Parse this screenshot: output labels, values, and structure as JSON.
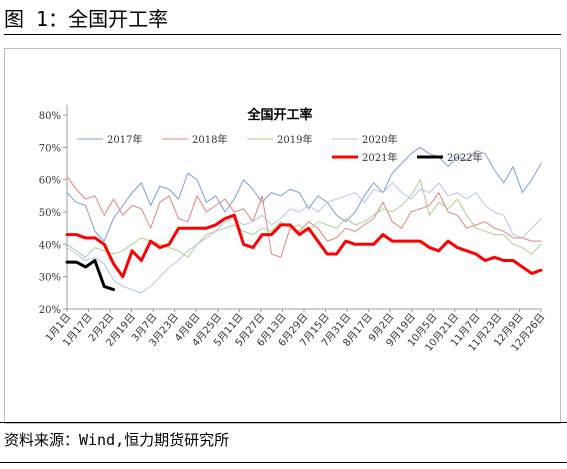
{
  "figure": {
    "title": "图 1：全国开工率"
  },
  "source": "资料来源：Wind,恒力期货研究所",
  "colors": {
    "2017年": "#7b9fd4",
    "2018年": "#e3847e",
    "2019年": "#a9d18e",
    "2020年": "#b4c6e7",
    "2021年": "#ff0000",
    "2022年": "#000000"
  },
  "chart_data": {
    "type": "line",
    "title": "全国开工率",
    "xlabel": "",
    "ylabel": "",
    "ylim": [
      20,
      80
    ],
    "yticks": [
      "20%",
      "30%",
      "40%",
      "50%",
      "60%",
      "70%",
      "80%"
    ],
    "grid": false,
    "legend_position": "top",
    "x_count": 52,
    "x_labels": [
      "1月1日",
      "1月17日",
      "2月2日",
      "2月19日",
      "3月7日",
      "3月23日",
      "4月8日",
      "4月25日",
      "5月11日",
      "5月27日",
      "6月13日",
      "6月29日",
      "7月15日",
      "7月31日",
      "8月17日",
      "9月2日",
      "9月19日",
      "10月5日",
      "10月21日",
      "11月7日",
      "11月23日",
      "12月9日",
      "12月26日"
    ],
    "series": [
      {
        "name": "2017年",
        "values": [
          56,
          53,
          52,
          44,
          41,
          48,
          52,
          56,
          59,
          52,
          58,
          57,
          54,
          62,
          60,
          53,
          55,
          50,
          54,
          60,
          57,
          53,
          56,
          55,
          57,
          56,
          51,
          55,
          53,
          49,
          47,
          50,
          55,
          59,
          56,
          62,
          65,
          68,
          70,
          68,
          67,
          64,
          67,
          66,
          69,
          68,
          63,
          59,
          64,
          56,
          60,
          65
        ]
      },
      {
        "name": "2018年",
        "values": [
          61,
          57,
          54,
          55,
          49,
          54,
          49,
          52,
          51,
          45,
          53,
          55,
          48,
          47,
          55,
          50,
          52,
          54,
          50,
          51,
          47,
          55,
          37,
          36,
          45,
          44,
          47,
          45,
          41,
          42,
          45,
          44,
          46,
          48,
          53,
          47,
          45,
          50,
          51,
          52,
          56,
          50,
          49,
          45,
          46,
          47,
          45,
          44,
          42,
          42,
          41,
          41
        ]
      },
      {
        "name": "2019年",
        "values": [
          40,
          38,
          36,
          39,
          38,
          37,
          38,
          40,
          42,
          41,
          40,
          39,
          38,
          36,
          40,
          43,
          44,
          45,
          46,
          44,
          43,
          45,
          44,
          47,
          45,
          46,
          44,
          47,
          46,
          45,
          48,
          46,
          47,
          49,
          51,
          50,
          52,
          55,
          60,
          49,
          53,
          51,
          54,
          49,
          45,
          44,
          43,
          43,
          40,
          39,
          37,
          40
        ]
      },
      {
        "name": "2020年",
        "values": [
          39,
          37,
          35,
          36,
          34,
          29,
          27,
          26,
          25,
          27,
          30,
          33,
          35,
          38,
          40,
          42,
          44,
          47,
          48,
          46,
          47,
          49,
          46,
          48,
          51,
          50,
          52,
          50,
          53,
          54,
          55,
          56,
          53,
          57,
          56,
          59,
          56,
          54,
          57,
          56,
          59,
          55,
          56,
          54,
          56,
          52,
          50,
          49,
          43,
          42,
          45,
          48
        ]
      },
      {
        "name": "2021年",
        "values": [
          43,
          43,
          42,
          42,
          40,
          34,
          30,
          38,
          35,
          41,
          39,
          40,
          45,
          45,
          45,
          45,
          46,
          48,
          49,
          40,
          39,
          43,
          43,
          46,
          46,
          43,
          45,
          41,
          37,
          37,
          41,
          40,
          40,
          40,
          43,
          41,
          41,
          41,
          41,
          39,
          38,
          41,
          39,
          38,
          37,
          35,
          36,
          35,
          35,
          33,
          31,
          32
        ]
      },
      {
        "name": "2022年",
        "values": [
          34.5,
          34.5,
          33,
          35,
          27,
          26
        ]
      }
    ]
  }
}
